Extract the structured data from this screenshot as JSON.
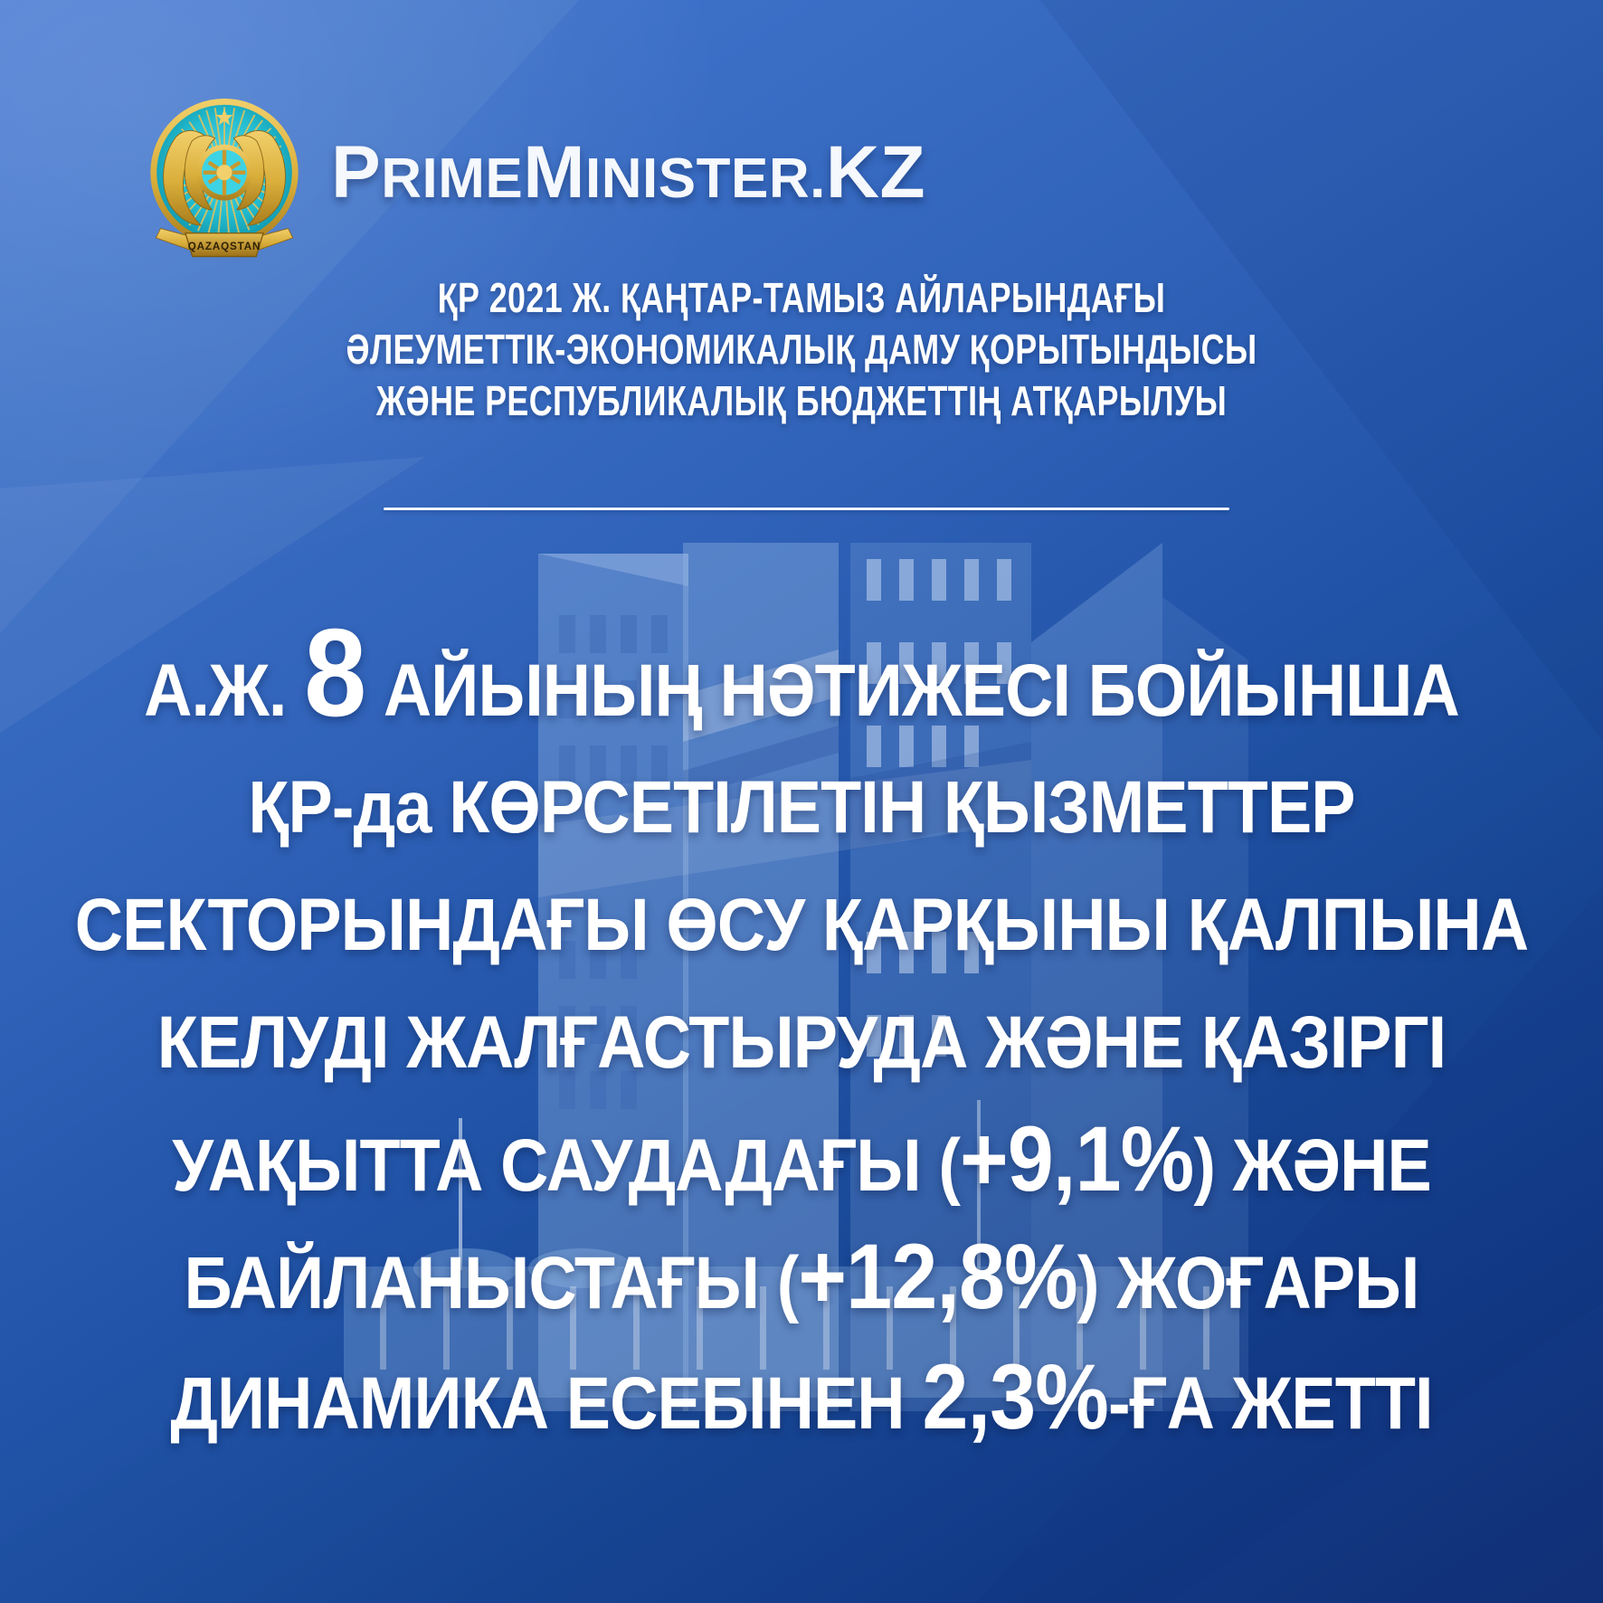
{
  "brand": {
    "site_name": "PrimeMinister.KZ",
    "site_name_segments": [
      {
        "text": "P",
        "style": "large"
      },
      {
        "text": "RIME",
        "style": "small"
      },
      {
        "text": "M",
        "style": "large"
      },
      {
        "text": "INISTER.",
        "style": "small"
      },
      {
        "text": "KZ",
        "style": "large"
      }
    ],
    "emblem_caption": "QAZAQSTAN"
  },
  "subtitle": {
    "lines": [
      "ҚР 2021 Ж. ҚАҢТАР-ТАМЫЗ АЙЛАРЫНДАҒЫ",
      "ӘЛЕУМЕТТІК-ЭКОНОМИКАЛЫҚ ДАМУ ҚОРЫТЫНДЫСЫ",
      "ЖӘНЕ РЕСПУБЛИКАЛЫҚ БЮДЖЕТТІҢ АТҚАРЫЛУЫ"
    ]
  },
  "message": {
    "lines": [
      {
        "segments": [
          {
            "text": "А.Ж. ",
            "size": "normal"
          },
          {
            "text": "8",
            "size": "huge"
          },
          {
            "text": " АЙЫНЫҢ НӘТИЖЕСІ БОЙЫНША",
            "size": "normal"
          }
        ]
      },
      {
        "segments": [
          {
            "text": "ҚР-да КӨРСЕТІЛЕТІН ҚЫЗМЕТТЕР",
            "size": "normal"
          }
        ]
      },
      {
        "segments": [
          {
            "text": "СЕКТОРЫНДАҒЫ ӨСУ ҚАРҚЫНЫ ҚАЛПЫНА",
            "size": "normal"
          }
        ]
      },
      {
        "segments": [
          {
            "text": "КЕЛУДІ ЖАЛҒАСТЫРУДА ЖӘНЕ ҚАЗІРГІ",
            "size": "normal"
          }
        ]
      },
      {
        "segments": [
          {
            "text": "УАҚЫТТА САУДАДАҒЫ (",
            "size": "normal"
          },
          {
            "text": "+9,1%",
            "size": "big"
          },
          {
            "text": ") ЖӘНЕ",
            "size": "normal"
          }
        ]
      },
      {
        "segments": [
          {
            "text": "БАЙЛАНЫСТАҒЫ (",
            "size": "normal"
          },
          {
            "text": "+12,8%",
            "size": "big"
          },
          {
            "text": ") ЖОҒАРЫ",
            "size": "normal"
          }
        ]
      },
      {
        "segments": [
          {
            "text": "ДИНАМИКА ЕСЕБІНЕН ",
            "size": "normal"
          },
          {
            "text": "2,3%",
            "size": "big"
          },
          {
            "text": "-ҒА ЖЕТТІ",
            "size": "normal"
          }
        ]
      }
    ]
  },
  "colors": {
    "bg_top_left": "#4a7cd3",
    "bg_bottom_right": "#112f76",
    "text": "#ffffff",
    "emblem_gold": "#d9ae3a",
    "emblem_teal": "#23bcd0"
  }
}
